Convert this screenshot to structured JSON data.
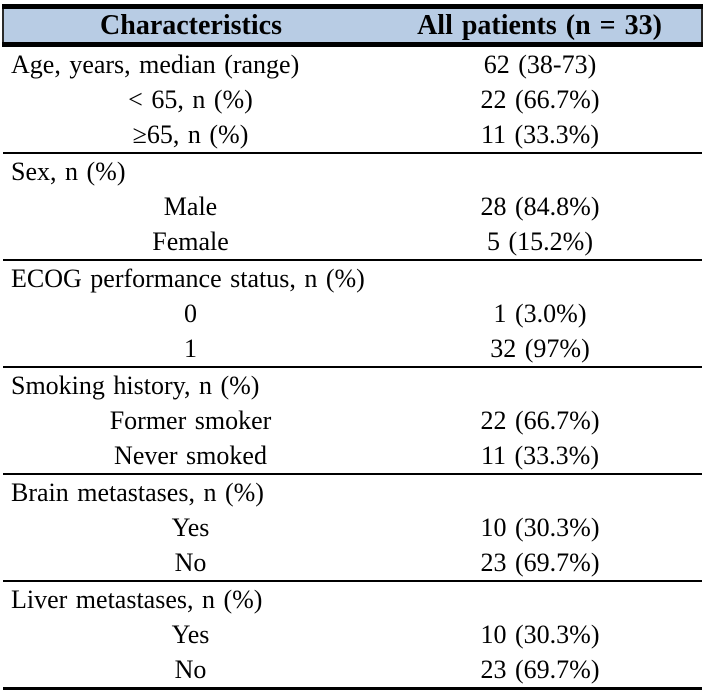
{
  "table": {
    "header": {
      "col1": "Characteristics",
      "col2": "All patients (n = 33)",
      "bg_color": "#b8cce4"
    },
    "border_color": "#000000",
    "rows": [
      {
        "label": "Age, years, median (range)",
        "value": "62 (38-73)"
      },
      {
        "label": "< 65, n (%)",
        "value": "22 (66.7%)"
      },
      {
        "label": "≥65, n (%)",
        "value": "11 (33.3%)"
      },
      {
        "label": "Sex, n (%)",
        "value": ""
      },
      {
        "label": "Male",
        "value": "28 (84.8%)"
      },
      {
        "label": "Female",
        "value": "5 (15.2%)"
      },
      {
        "label": "ECOG performance status, n (%)",
        "value": ""
      },
      {
        "label": "0",
        "value": "1 (3.0%)"
      },
      {
        "label": "1",
        "value": "32 (97%)"
      },
      {
        "label": "Smoking history, n (%)",
        "value": ""
      },
      {
        "label": "Former smoker",
        "value": "22 (66.7%)"
      },
      {
        "label": "Never smoked",
        "value": "11 (33.3%)"
      },
      {
        "label": "Brain metastases, n (%)",
        "value": ""
      },
      {
        "label": "Yes",
        "value": "10 (30.3%)"
      },
      {
        "label": "No",
        "value": "23 (69.7%)"
      },
      {
        "label": "Liver metastases, n (%)",
        "value": ""
      },
      {
        "label": "Yes",
        "value": "10 (30.3%)"
      },
      {
        "label": "No",
        "value": "23 (69.7%)"
      }
    ]
  }
}
